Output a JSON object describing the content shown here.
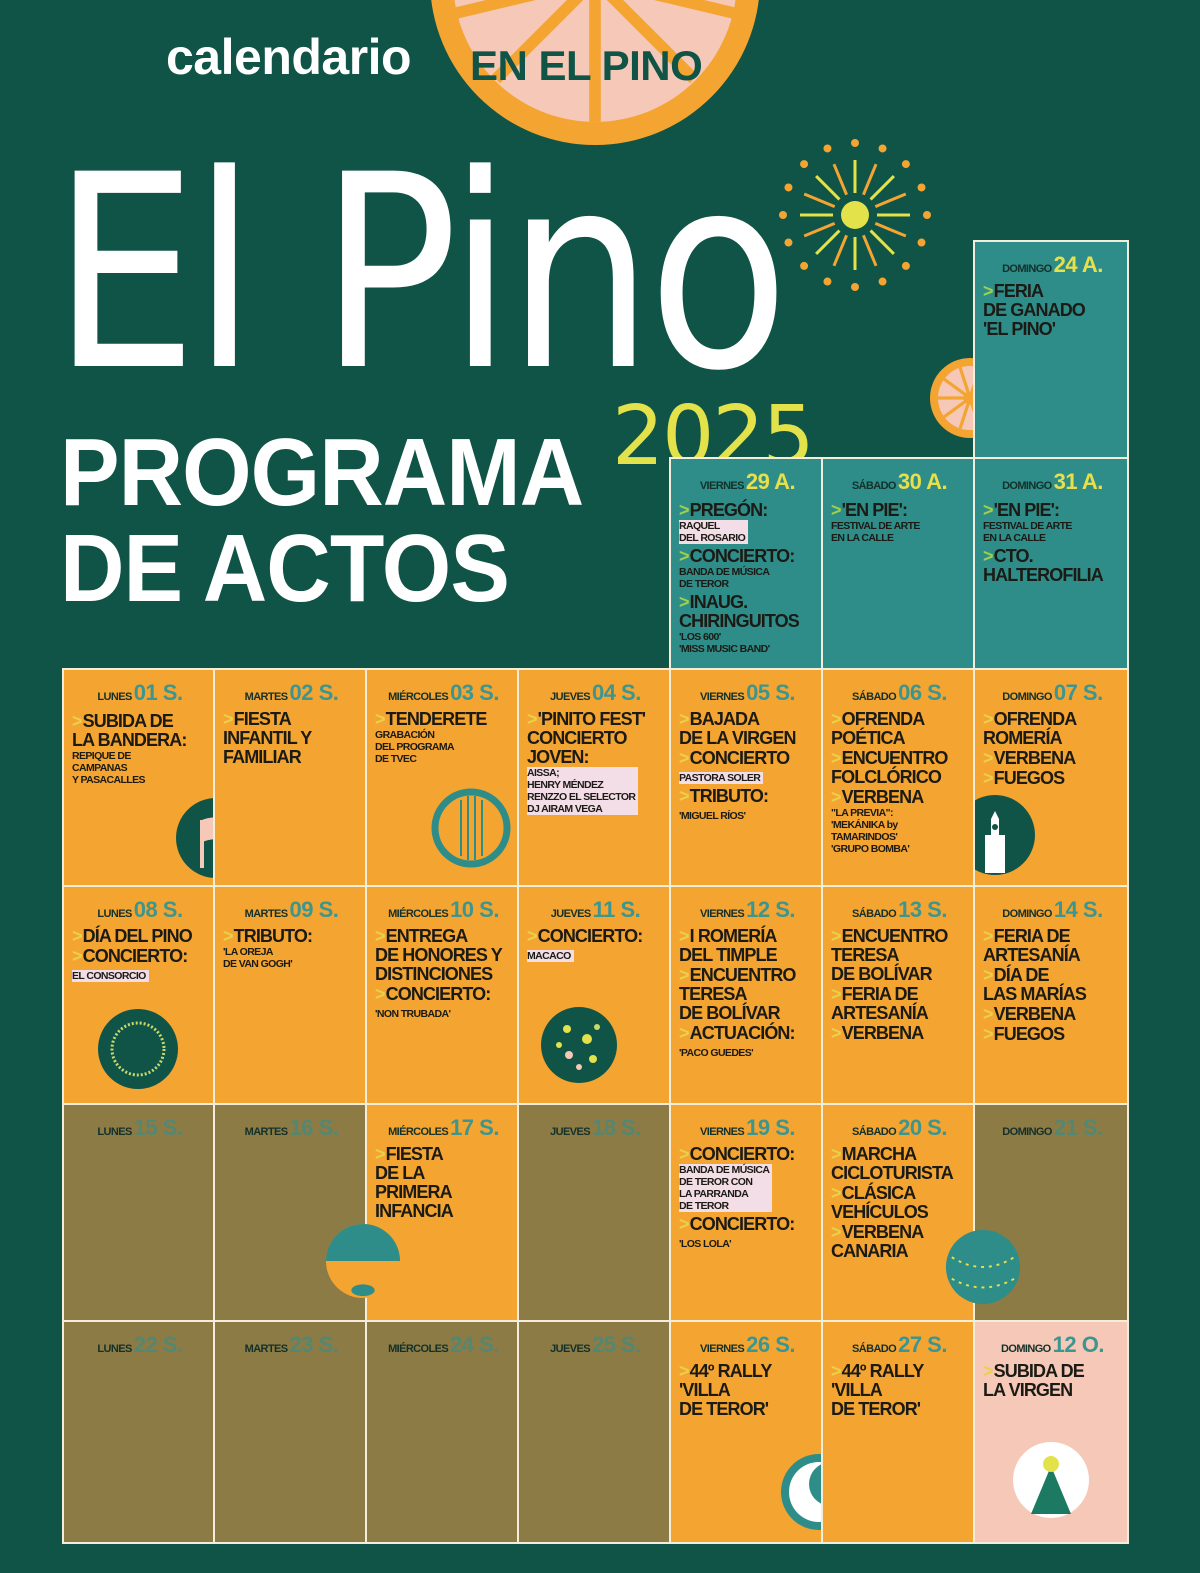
{
  "header": {
    "calendario": "calendario",
    "en_el_pino": "EN EL PINO",
    "title": "El Pino",
    "year": "2025",
    "program_line1": "PROGRAMA",
    "program_line2": "DE ACTOS"
  },
  "colors": {
    "background": "#0f5446",
    "orange": "#f4a431",
    "teal": "#2f8d89",
    "olive": "#8c7b44",
    "pink": "#f5c8b7",
    "yellow": "#e3e24a"
  },
  "cells": [
    {
      "day": "DOMINGO",
      "date": "24 A.",
      "color": "teal",
      "col": 6,
      "row": 0,
      "events": [
        {
          "t": "FERIA\nDE GANADO\n'EL PINO'"
        }
      ]
    },
    {
      "day": "VIERNES",
      "date": "29 A.",
      "color": "teal",
      "col": 4,
      "row": 1,
      "events": [
        {
          "t": "PREGÓN:",
          "s": "RAQUEL\nDEL ROSARIO",
          "hl": true
        },
        {
          "t": "CONCIERTO:",
          "s": "BANDA DE MÚSICA\nDE TEROR"
        },
        {
          "t": "INAUG.\nCHIRINGUITOS",
          "s": "'LOS 600'\n'MISS MUSIC BAND'"
        }
      ]
    },
    {
      "day": "SÁBADO",
      "date": "30 A.",
      "color": "teal",
      "col": 5,
      "row": 1,
      "events": [
        {
          "t": "'EN PIE':",
          "s": "FESTIVAL DE ARTE\nEN LA CALLE"
        }
      ]
    },
    {
      "day": "DOMINGO",
      "date": "31 A.",
      "color": "teal",
      "col": 6,
      "row": 1,
      "events": [
        {
          "t": "'EN PIE':",
          "s": "FESTIVAL DE ARTE\nEN LA CALLE"
        },
        {
          "t": "CTO.\nHALTEROFILIA"
        }
      ]
    },
    {
      "day": "LUNES",
      "date": "01 S.",
      "color": "orange",
      "col": 0,
      "row": 2,
      "icon": "flag-icon",
      "events": [
        {
          "t": "SUBIDA DE\nLA BANDERA:",
          "s": "REPIQUE DE\nCAMPANAS\nY PASACALLES"
        }
      ]
    },
    {
      "day": "MARTES",
      "date": "02 S.",
      "color": "orange",
      "col": 1,
      "row": 2,
      "events": [
        {
          "t": "FIESTA\nINFANTIL Y\nFAMILIAR"
        }
      ]
    },
    {
      "day": "MIÉRCOLES",
      "date": "03 S.",
      "color": "orange",
      "col": 2,
      "row": 2,
      "icon": "timple-icon",
      "events": [
        {
          "t": "TENDERETE",
          "s": "GRABACIÓN\nDEL PROGRAMA\nDE TVEC"
        }
      ]
    },
    {
      "day": "JUEVES",
      "date": "04 S.",
      "color": "orange",
      "col": 3,
      "row": 2,
      "events": [
        {
          "t": "'PINITO FEST'\nCONCIERTO\nJOVEN:",
          "s": "AISSA;\nHENRY MÉNDEZ\nRENZZO EL SELECTOR\nDJ AIRAM VEGA",
          "hl": true
        }
      ]
    },
    {
      "day": "VIERNES",
      "date": "05 S.",
      "color": "orange",
      "col": 4,
      "row": 2,
      "events": [
        {
          "t": "BAJADA\nDE LA VIRGEN"
        },
        {
          "t": "CONCIERTO",
          "s": "PASTORA SOLER",
          "hl": true
        },
        {
          "t": "TRIBUTO:",
          "s": "'MIGUEL RÍOS'"
        }
      ]
    },
    {
      "day": "SÁBADO",
      "date": "06 S.",
      "color": "orange",
      "col": 5,
      "row": 2,
      "events": [
        {
          "t": "OFRENDA\nPOÉTICA"
        },
        {
          "t": "ENCUENTRO\nFOLCLÓRICO"
        },
        {
          "t": "VERBENA",
          "s": "\"LA PREVIA\":\n'MEKÁNIKA by\nTAMARINDOS'\n'GRUPO BOMBA'"
        }
      ]
    },
    {
      "day": "DOMINGO",
      "date": "07 S.",
      "color": "orange",
      "col": 6,
      "row": 2,
      "icon": "church-icon",
      "events": [
        {
          "t": "OFRENDA\nROMERÍA"
        },
        {
          "t": "VERBENA"
        },
        {
          "t": "FUEGOS"
        }
      ]
    },
    {
      "day": "LUNES",
      "date": "08 S.",
      "color": "orange",
      "col": 0,
      "row": 3,
      "icon": "wreath-icon",
      "events": [
        {
          "t": "DÍA DEL PINO"
        },
        {
          "t": "CONCIERTO:",
          "s": "EL CONSORCIO",
          "hl": true
        }
      ]
    },
    {
      "day": "MARTES",
      "date": "09 S.",
      "color": "orange",
      "col": 1,
      "row": 3,
      "events": [
        {
          "t": "TRIBUTO:",
          "s": "'LA OREJA\nDE VAN GOGH'"
        }
      ]
    },
    {
      "day": "MIÉRCOLES",
      "date": "10 S.",
      "color": "orange",
      "col": 2,
      "row": 3,
      "events": [
        {
          "t": "ENTREGA\nDE HONORES Y\nDISTINCIONES"
        },
        {
          "t": "CONCIERTO:",
          "s": "'NON TRUBADA'"
        }
      ]
    },
    {
      "day": "JUEVES",
      "date": "11 S.",
      "color": "orange",
      "col": 3,
      "row": 3,
      "icon": "confetti-icon",
      "events": [
        {
          "t": "CONCIERTO:",
          "s": "MACACO",
          "hl": true
        }
      ]
    },
    {
      "day": "VIERNES",
      "date": "12 S.",
      "color": "orange",
      "col": 4,
      "row": 3,
      "events": [
        {
          "t": "I ROMERÍA\nDEL TIMPLE"
        },
        {
          "t": "ENCUENTRO\nTERESA\nDE BOLÍVAR"
        },
        {
          "t": "ACTUACIÓN:",
          "s": "'PACO GUEDES'"
        }
      ]
    },
    {
      "day": "SÁBADO",
      "date": "13 S.",
      "color": "orange",
      "col": 5,
      "row": 3,
      "events": [
        {
          "t": "ENCUENTRO\nTERESA\nDE BOLÍVAR"
        },
        {
          "t": "FERIA DE\nARTESANÍA"
        },
        {
          "t": "VERBENA"
        }
      ]
    },
    {
      "day": "DOMINGO",
      "date": "14 S.",
      "color": "orange",
      "col": 6,
      "row": 3,
      "events": [
        {
          "t": "FERIA DE\nARTESANÍA"
        },
        {
          "t": "DÍA DE\nLAS MARÍAS"
        },
        {
          "t": "VERBENA"
        },
        {
          "t": "FUEGOS"
        }
      ]
    },
    {
      "day": "LUNES",
      "date": "15 S.",
      "color": "olive",
      "col": 0,
      "row": 4,
      "events": []
    },
    {
      "day": "MARTES",
      "date": "16 S.",
      "color": "olive",
      "col": 1,
      "row": 4,
      "events": []
    },
    {
      "day": "MIÉRCOLES",
      "date": "17 S.",
      "color": "orange",
      "col": 2,
      "row": 4,
      "events": [
        {
          "t": "FIESTA\nDE LA\nPRIMERA\nINFANCIA"
        }
      ]
    },
    {
      "day": "JUEVES",
      "date": "18 S.",
      "color": "olive",
      "col": 3,
      "row": 4,
      "events": []
    },
    {
      "day": "VIERNES",
      "date": "19 S.",
      "color": "orange",
      "col": 4,
      "row": 4,
      "events": [
        {
          "t": "CONCIERTO:",
          "s": "BANDA DE MÚSICA\nDE TEROR CON\nLA PARRANDA\nDE TEROR",
          "hl": true
        },
        {
          "t": "CONCIERTO:",
          "s": "'LOS LOLA'"
        }
      ]
    },
    {
      "day": "SÁBADO",
      "date": "20 S.",
      "color": "orange",
      "col": 5,
      "row": 4,
      "events": [
        {
          "t": "MARCHA\nCICLOTURISTA"
        },
        {
          "t": "CLÁSICA\nVEHÍCULOS"
        },
        {
          "t": "VERBENA\nCANARIA"
        }
      ]
    },
    {
      "day": "DOMINGO",
      "date": "21 S.",
      "color": "olive",
      "col": 6,
      "row": 4,
      "events": []
    },
    {
      "day": "LUNES",
      "date": "22 S.",
      "color": "olive",
      "col": 0,
      "row": 5,
      "events": []
    },
    {
      "day": "MARTES",
      "date": "23 S.",
      "color": "olive",
      "col": 1,
      "row": 5,
      "events": []
    },
    {
      "day": "MIÉRCOLES",
      "date": "24 S.",
      "color": "olive",
      "col": 2,
      "row": 5,
      "events": []
    },
    {
      "day": "JUEVES",
      "date": "25 S.",
      "color": "olive",
      "col": 3,
      "row": 5,
      "events": []
    },
    {
      "day": "VIERNES",
      "date": "26 S.",
      "color": "orange",
      "col": 4,
      "row": 5,
      "icon": "moon-icon",
      "events": [
        {
          "t": "44º RALLY\n'VILLA\nDE TEROR'"
        }
      ]
    },
    {
      "day": "SÁBADO",
      "date": "27 S.",
      "color": "orange",
      "col": 5,
      "row": 5,
      "events": [
        {
          "t": "44º RALLY\n'VILLA\nDE TEROR'"
        }
      ]
    },
    {
      "day": "DOMINGO",
      "date": "12 O.",
      "color": "pink",
      "col": 6,
      "row": 5,
      "icon": "virgin-icon",
      "events": [
        {
          "t": "SUBIDA DE\nLA VIRGEN"
        }
      ]
    }
  ]
}
